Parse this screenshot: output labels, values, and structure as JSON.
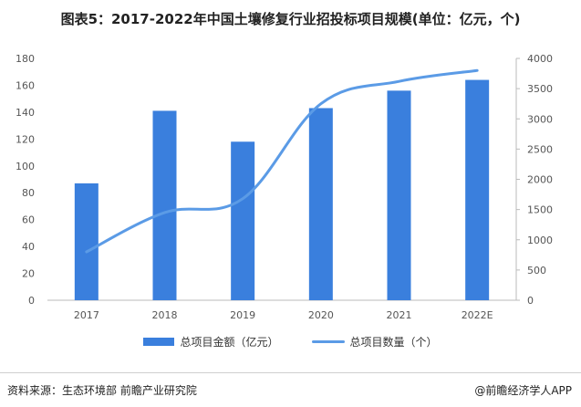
{
  "title": "图表5：2017-2022年中国土壤修复行业招投标项目规模(单位：亿元，个)",
  "colors": {
    "bar": "#3a7fdd",
    "line": "#5b9be6",
    "axis": "#bbbbbb",
    "text": "#555555"
  },
  "chart_data": {
    "type": "bar+line",
    "categories": [
      "2017",
      "2018",
      "2019",
      "2020",
      "2021",
      "2022E"
    ],
    "series": [
      {
        "name": "总项目金额（亿元）",
        "type": "bar",
        "axis": "left",
        "values": [
          87,
          141,
          118,
          143,
          156,
          164
        ]
      },
      {
        "name": "总项目数量（个）",
        "type": "line",
        "axis": "right",
        "values": [
          800,
          1450,
          1680,
          3250,
          3620,
          3800
        ]
      }
    ],
    "y_left": {
      "min": 0,
      "max": 180,
      "ticks": [
        0,
        20,
        40,
        60,
        80,
        100,
        120,
        140,
        160,
        180
      ]
    },
    "y_right": {
      "min": 0,
      "max": 4000,
      "ticks": [
        0,
        500,
        1000,
        1500,
        2000,
        2500,
        3000,
        3500,
        4000
      ]
    },
    "legend_position": "bottom"
  },
  "footer": {
    "source": "资料来源：生态环境部 前瞻产业研究院",
    "brand": "@前瞻经济学人APP"
  }
}
